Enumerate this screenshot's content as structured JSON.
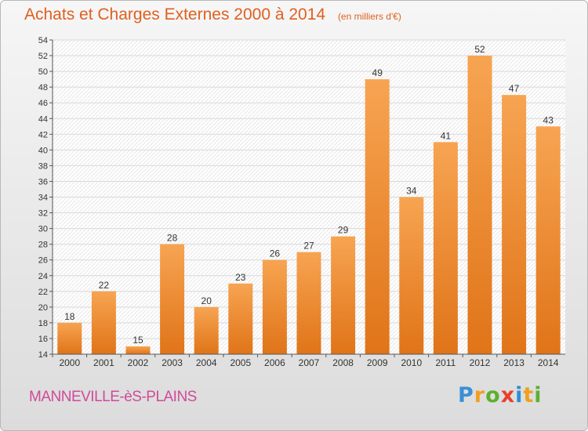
{
  "chart_data": {
    "type": "bar",
    "title": "Achats et Charges Externes 2000 à 2014",
    "subtitle": "(en milliers d'€)",
    "categories": [
      "2000",
      "2001",
      "2002",
      "2003",
      "2004",
      "2005",
      "2006",
      "2007",
      "2008",
      "2009",
      "2010",
      "2011",
      "2012",
      "2013",
      "2014"
    ],
    "values": [
      18,
      22,
      15,
      28,
      20,
      23,
      26,
      27,
      29,
      49,
      34,
      41,
      52,
      47,
      43
    ],
    "ylim": [
      14,
      54
    ],
    "yticks": [
      14,
      16,
      18,
      20,
      22,
      24,
      26,
      28,
      30,
      32,
      34,
      36,
      38,
      40,
      42,
      44,
      46,
      48,
      50,
      52,
      54
    ],
    "grid": true,
    "bar_color": "#f08a2c"
  },
  "commune": "MANNEVILLE-èS-PLAINS",
  "brand": {
    "letters": [
      "P",
      "r",
      "o",
      "x",
      "i",
      "t",
      "i"
    ],
    "colors": [
      "#3a8fd6",
      "#f0a020",
      "#5cb030",
      "#e8402a",
      "#2f8fd0",
      "#f0a020",
      "#5cb030"
    ]
  }
}
